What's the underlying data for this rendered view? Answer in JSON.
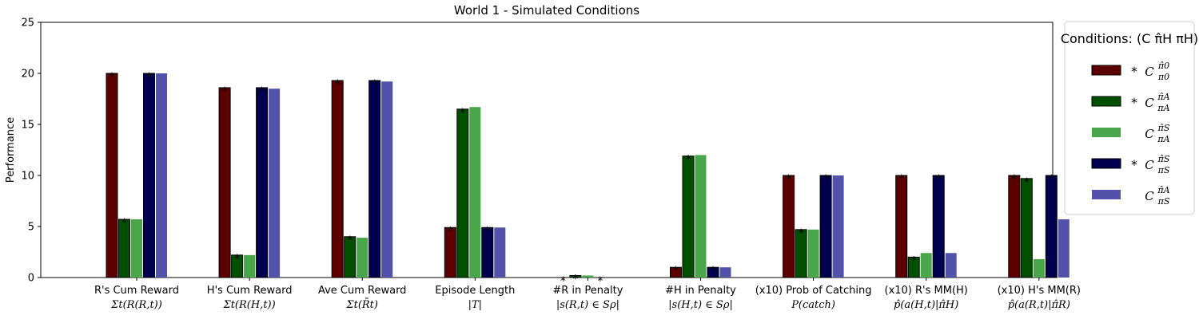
{
  "chart_data": {
    "type": "bar",
    "title": "World 1 - Simulated Conditions",
    "ylabel": "Performance",
    "xlabel": "",
    "ylim": [
      0,
      25
    ],
    "yticks": [
      "0",
      "5",
      "10",
      "15",
      "20",
      "25"
    ],
    "categories": [
      {
        "line1": "R's Cum Reward",
        "line2": "Σt(R(R,t))"
      },
      {
        "line1": "H's Cum Reward",
        "line2": "Σt(R(H,t))"
      },
      {
        "line1": "Ave Cum Reward",
        "line2": "Σt(R̄t)"
      },
      {
        "line1": "Episode Length",
        "line2": "|T|"
      },
      {
        "line1": "#R in Penalty",
        "line2": "|s(R,t) ∈ Sρ|"
      },
      {
        "line1": "#H in Penalty",
        "line2": "|s(H,t) ∈ Sρ|"
      },
      {
        "line1": "(x10) Prob of Catching",
        "line2": "P(catch)"
      },
      {
        "line1": "(x10) R's MM(H)",
        "line2": "p̂(a(H,t)|π̂H)"
      },
      {
        "line1": "(x10) H's MM(R)",
        "line2": "p̂(a(R,t)|π̂R)"
      }
    ],
    "series": [
      {
        "label": "* C π0 π̂0",
        "color": "#5c0000",
        "edge": true,
        "values": [
          20.0,
          18.6,
          19.3,
          4.9,
          0.0,
          1.0,
          10.0,
          10.0,
          10.0
        ],
        "stars": [
          true,
          true,
          true,
          true,
          true,
          true,
          true,
          true,
          true
        ]
      },
      {
        "label": "* C πA π̂A",
        "color": "#005000",
        "edge": true,
        "values": [
          5.7,
          2.2,
          4.0,
          16.5,
          0.2,
          11.9,
          4.7,
          2.0,
          9.7
        ],
        "stars": [
          true,
          true,
          true,
          true,
          true,
          true,
          true,
          true,
          true
        ]
      },
      {
        "label": "C πA π̂S",
        "color": "#4aa64a",
        "edge": false,
        "values": [
          5.7,
          2.2,
          3.9,
          16.7,
          0.2,
          12.0,
          4.7,
          2.4,
          1.8
        ],
        "stars": [
          false,
          false,
          false,
          false,
          false,
          false,
          false,
          false,
          false
        ]
      },
      {
        "label": "* C πS π̂S",
        "color": "#00004e",
        "edge": true,
        "values": [
          20.0,
          18.6,
          19.3,
          4.9,
          0.0,
          1.0,
          10.0,
          10.0,
          10.0
        ],
        "stars": [
          true,
          true,
          true,
          true,
          true,
          true,
          true,
          true,
          true
        ]
      },
      {
        "label": "C πS π̂A",
        "color": "#5252aa",
        "edge": false,
        "values": [
          20.0,
          18.5,
          19.2,
          4.9,
          0.0,
          1.0,
          10.0,
          2.4,
          5.7
        ],
        "stars": [
          false,
          false,
          false,
          false,
          false,
          false,
          false,
          false,
          false
        ]
      }
    ],
    "legend": {
      "title": "Conditions: (C π̂H πH)",
      "position": "right",
      "entries": [
        {
          "star": "*",
          "sup": "π̂0",
          "sub": "π0"
        },
        {
          "star": "*",
          "sup": "π̂A",
          "sub": "πA"
        },
        {
          "star": "",
          "sup": "π̂S",
          "sub": "πA"
        },
        {
          "star": "*",
          "sup": "π̂S",
          "sub": "πS"
        },
        {
          "star": "",
          "sup": "π̂A",
          "sub": "πS"
        }
      ]
    },
    "star_symbol": "*",
    "grid": false
  }
}
